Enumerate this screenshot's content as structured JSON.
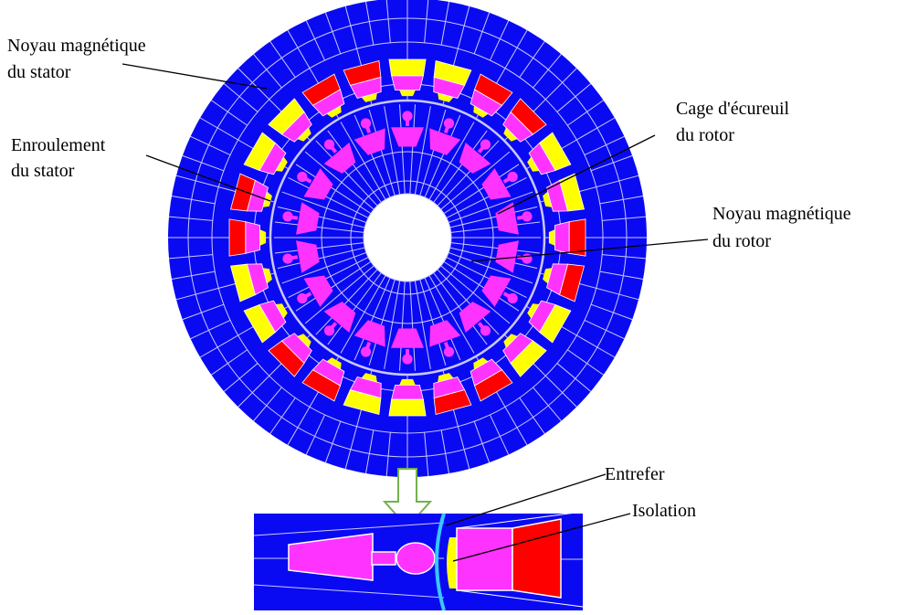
{
  "labels": {
    "stator_core": {
      "line1": "Noyau magnétique",
      "line2": "du stator"
    },
    "stator_winding": {
      "line1": "Enroulement",
      "line2": "du stator"
    },
    "rotor_cage": {
      "line1": "Cage d'écureuil",
      "line2": "du rotor"
    },
    "rotor_core": {
      "line1": "Noyau magnétique",
      "line2": "du rotor"
    },
    "air_gap": "Entrefer",
    "insulation": "Isolation"
  },
  "machine": {
    "stator_slots": 24,
    "rotor_bars": 18,
    "stator_phase_pattern": [
      "yellow",
      "yellow",
      "red",
      "red"
    ]
  },
  "colors": {
    "core": "#0a0af2",
    "mesh": "#c8c8ff",
    "winding_magenta": "#ff33ff",
    "winding_yellow": "#ffff00",
    "winding_red": "#ff0000",
    "air_gap": "#3ac6ff",
    "zoom_arrow": "#74b24c",
    "leader": "#000000"
  }
}
